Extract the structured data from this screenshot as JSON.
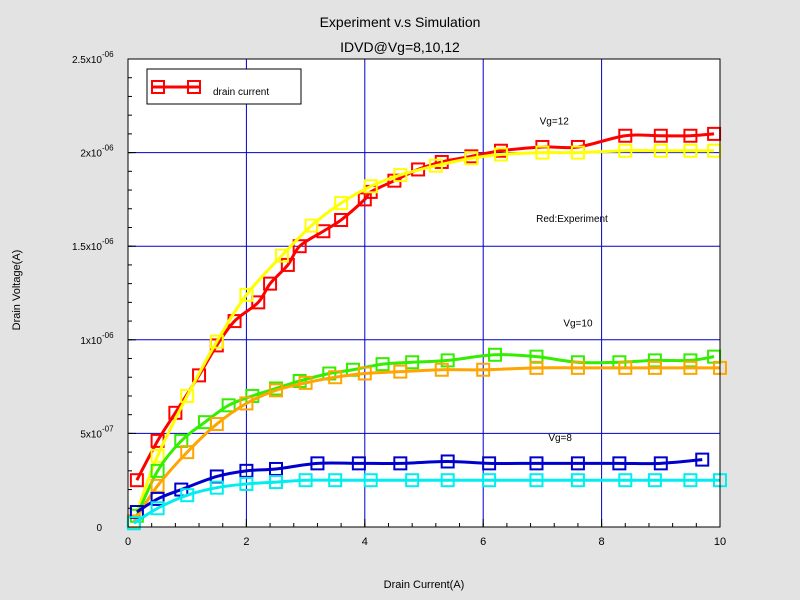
{
  "chart_data": {
    "type": "line",
    "title": "Experiment v.s Simulation",
    "subtitle": "IDVD@Vg=8,10,12",
    "xlabel": "Drain Current(A)",
    "ylabel": "Drain Voltage(A)",
    "xlim": [
      0,
      10
    ],
    "ylim": [
      0,
      2.5e-06
    ],
    "x_ticks": [
      "0",
      "2",
      "4",
      "6",
      "8",
      "10"
    ],
    "y_ticks": [
      {
        "mant": "0",
        "exp": ""
      },
      {
        "mant": "5x10",
        "exp": "-07"
      },
      {
        "mant": "1x10",
        "exp": "-06"
      },
      {
        "mant": "1.5x10",
        "exp": "-06"
      },
      {
        "mant": "2x10",
        "exp": "-06"
      },
      {
        "mant": "2.5x10",
        "exp": "-06"
      }
    ],
    "grid": true,
    "legend": {
      "placement": "top-left",
      "entries": [
        "drain current"
      ]
    },
    "annotations": [
      {
        "text": "Vg=12",
        "x": 7.2,
        "y": 2.15e-06
      },
      {
        "text": "Red:Experiment",
        "x": 7.5,
        "y": 1.63e-06
      },
      {
        "text": "Vg=10",
        "x": 7.6,
        "y": 1.07e-06
      },
      {
        "text": "Vg=8",
        "x": 7.3,
        "y": 4.6e-07
      }
    ],
    "series": [
      {
        "color": "#ff0000",
        "x": [
          0.15,
          0.5,
          0.8,
          1.2,
          1.5,
          1.8,
          2.2,
          2.4,
          2.7,
          2.9,
          3.3,
          3.6,
          4,
          4.1,
          4.5,
          4.9,
          5.3,
          5.8,
          6.3,
          7,
          7.6,
          8.4,
          9,
          9.5,
          9.9
        ],
        "y": [
          2.5e-07,
          4.6e-07,
          6.1e-07,
          8.1e-07,
          9.7e-07,
          1.1e-06,
          1.2e-06,
          1.3e-06,
          1.4e-06,
          1.5e-06,
          1.58e-06,
          1.64e-06,
          1.75e-06,
          1.79e-06,
          1.85e-06,
          1.91e-06,
          1.95e-06,
          1.98e-06,
          2.01e-06,
          2.03e-06,
          2.03e-06,
          2.09e-06,
          2.09e-06,
          2.09e-06,
          2.1e-06
        ]
      },
      {
        "color": "#ffff00",
        "x": [
          0.15,
          0.5,
          1,
          1.5,
          2,
          2.6,
          3.1,
          3.6,
          4.1,
          4.6,
          5.2,
          5.8,
          6.3,
          7,
          7.6,
          8.4,
          9,
          9.5,
          9.9
        ],
        "y": [
          8e-08,
          3.8e-07,
          7e-07,
          9.9e-07,
          1.24e-06,
          1.45e-06,
          1.61e-06,
          1.73e-06,
          1.82e-06,
          1.88e-06,
          1.93e-06,
          1.97e-06,
          1.99e-06,
          2e-06,
          2e-06,
          2.01e-06,
          2.01e-06,
          2.01e-06,
          2.01e-06
        ]
      },
      {
        "color": "#33ee00",
        "x": [
          0.15,
          0.5,
          0.9,
          1.3,
          1.7,
          2.1,
          2.5,
          2.9,
          3.4,
          3.8,
          4.3,
          4.8,
          5.4,
          6.2,
          6.9,
          7.6,
          8.3,
          8.9,
          9.5,
          9.9
        ],
        "y": [
          6e-08,
          3e-07,
          4.6e-07,
          5.6e-07,
          6.5e-07,
          7e-07,
          7.4e-07,
          7.8e-07,
          8.2e-07,
          8.4e-07,
          8.7e-07,
          8.8e-07,
          8.9e-07,
          9.2e-07,
          9.1e-07,
          8.8e-07,
          8.8e-07,
          8.9e-07,
          8.9e-07,
          9.1e-07
        ]
      },
      {
        "color": "#ffa500",
        "x": [
          0.1,
          0.5,
          1,
          1.5,
          2,
          2.5,
          3,
          3.5,
          4,
          4.6,
          5.3,
          6,
          6.9,
          7.6,
          8.4,
          8.9,
          9.5,
          10
        ],
        "y": [
          3e-08,
          2.2e-07,
          4e-07,
          5.5e-07,
          6.6e-07,
          7.3e-07,
          7.7e-07,
          8e-07,
          8.2e-07,
          8.3e-07,
          8.4e-07,
          8.4e-07,
          8.5e-07,
          8.5e-07,
          8.5e-07,
          8.5e-07,
          8.5e-07,
          8.5e-07
        ]
      },
      {
        "color": "#0000cc",
        "x": [
          0.15,
          0.5,
          0.9,
          1.5,
          2,
          2.5,
          3.2,
          3.9,
          4.6,
          5.4,
          6.1,
          6.9,
          7.6,
          8.3,
          9,
          9.7
        ],
        "y": [
          8e-08,
          1.5e-07,
          2e-07,
          2.7e-07,
          3e-07,
          3.1e-07,
          3.4e-07,
          3.4e-07,
          3.4e-07,
          3.5e-07,
          3.4e-07,
          3.4e-07,
          3.4e-07,
          3.4e-07,
          3.4e-07,
          3.6e-07
        ]
      },
      {
        "color": "#00eeee",
        "x": [
          0.1,
          0.5,
          1,
          1.5,
          2,
          2.5,
          3,
          3.5,
          4.1,
          4.8,
          5.4,
          6.1,
          6.9,
          7.6,
          8.4,
          8.9,
          9.5,
          10
        ],
        "y": [
          2e-08,
          1e-07,
          1.7e-07,
          2.1e-07,
          2.3e-07,
          2.4e-07,
          2.5e-07,
          2.5e-07,
          2.5e-07,
          2.5e-07,
          2.5e-07,
          2.5e-07,
          2.5e-07,
          2.5e-07,
          2.5e-07,
          2.5e-07,
          2.5e-07,
          2.5e-07
        ]
      }
    ]
  }
}
